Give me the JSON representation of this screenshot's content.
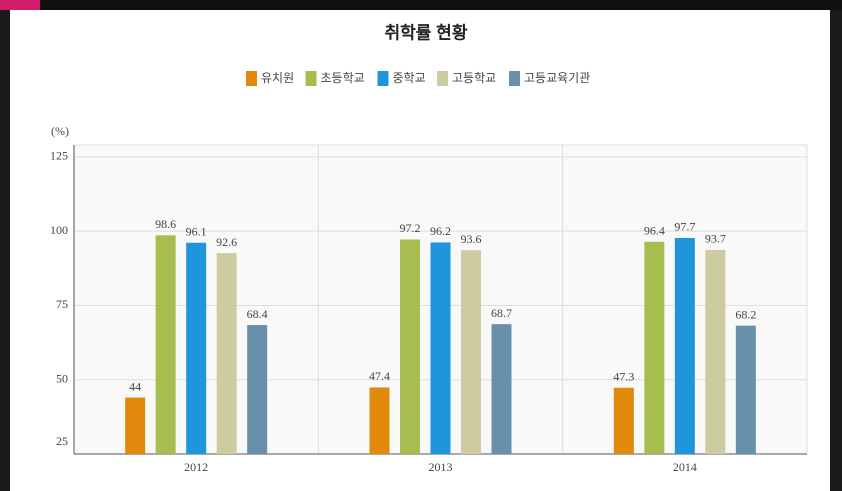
{
  "chart_data": {
    "type": "bar",
    "title": "취학률 현황",
    "y_label": "(%)",
    "categories": [
      "2012",
      "2013",
      "2014"
    ],
    "series": [
      {
        "name": "유치원",
        "color": "#e0890b",
        "values": [
          44,
          47.4,
          47.3
        ]
      },
      {
        "name": "초등학교",
        "color": "#a6bd50",
        "values": [
          98.6,
          97.2,
          96.4
        ]
      },
      {
        "name": "중학교",
        "color": "#1f96db",
        "values": [
          96.1,
          96.2,
          97.7
        ]
      },
      {
        "name": "고등학교",
        "color": "#cdcca1",
        "values": [
          92.6,
          93.6,
          93.7
        ]
      },
      {
        "name": "고등교육기관",
        "color": "#6890aa",
        "values": [
          68.4,
          68.7,
          68.2
        ]
      }
    ],
    "ylim": [
      25,
      129
    ],
    "yticks": [
      25,
      50,
      75,
      100,
      125
    ],
    "grid": true
  }
}
